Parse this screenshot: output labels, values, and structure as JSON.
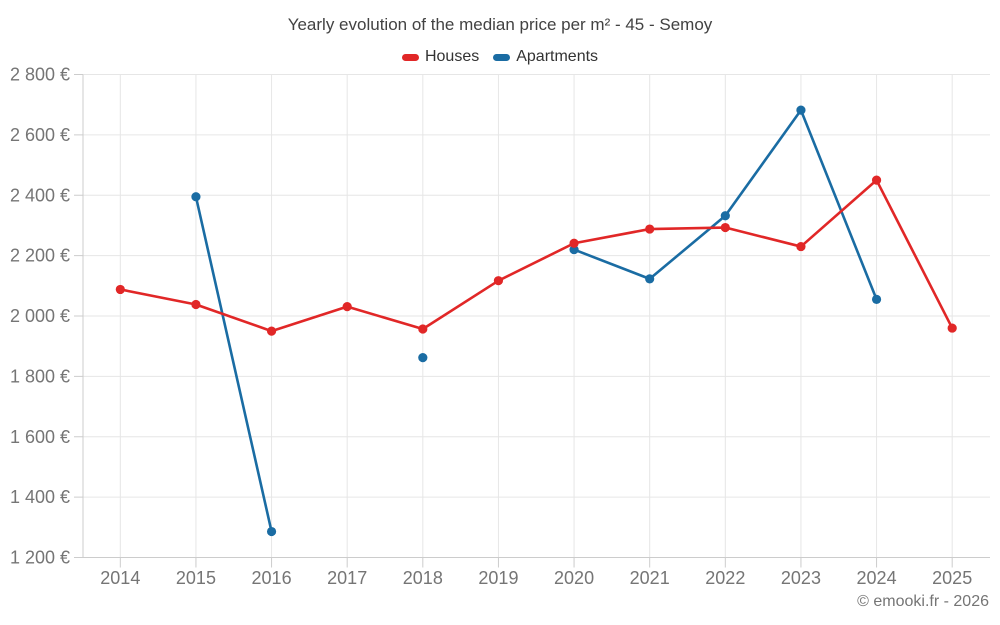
{
  "credit": "© emooki.fr - 2026",
  "chart_data": {
    "type": "line",
    "title": "Yearly evolution of the median price per m² - 45 - Semoy",
    "categories": [
      "2014",
      "2015",
      "2016",
      "2017",
      "2018",
      "2019",
      "2020",
      "2021",
      "2022",
      "2023",
      "2024",
      "2025"
    ],
    "series": [
      {
        "name": "Houses",
        "color": "#e12727",
        "values": [
          2088,
          2038,
          1950,
          2031,
          1957,
          2117,
          2241,
          2288,
          2293,
          2230,
          2450,
          1960
        ]
      },
      {
        "name": "Apartments",
        "color": "#1a6ca3",
        "values": [
          null,
          2395,
          1286,
          null,
          1862,
          null,
          2220,
          2123,
          2332,
          2682,
          2055,
          null
        ]
      }
    ],
    "xlabel": "",
    "ylabel": "",
    "ylabel_format": "{value} €",
    "ylim": [
      1200,
      2800
    ],
    "ytick_step": 200,
    "grid": true,
    "legend_position": "top",
    "credit": "© emooki.fr - 2026"
  },
  "colors": {
    "background": "#ffffff",
    "grid": "#e6e6e6",
    "axis": "#cccccc",
    "tick": "#cccccc",
    "tick_label": "#757575",
    "title": "#424242",
    "legend_text": "#333333"
  }
}
